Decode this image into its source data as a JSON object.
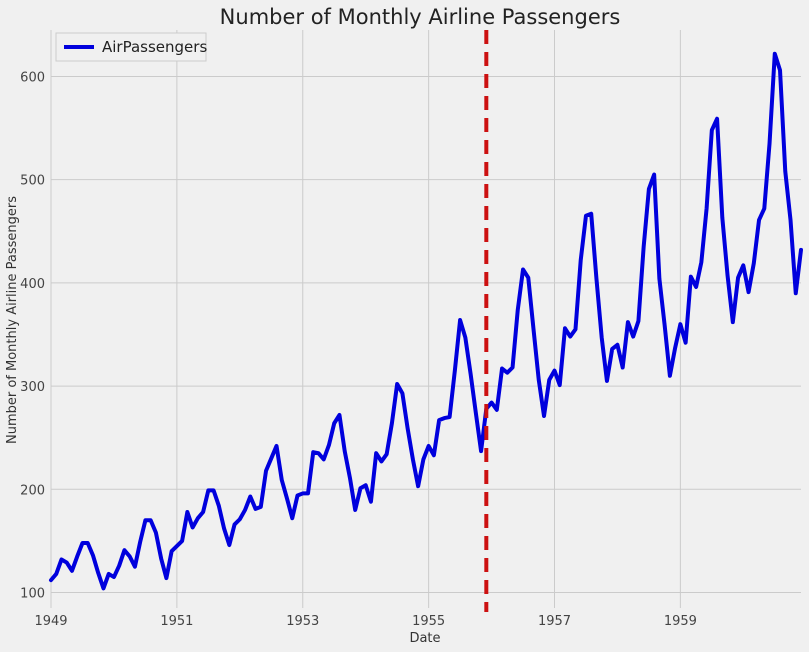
{
  "chart_data": {
    "type": "line",
    "title": "Number of Monthly Airline Passengers",
    "xlabel": "Date",
    "ylabel": "Number of Monthly Airline Passengers",
    "x_start": "1949-01",
    "x_end": "1960-12",
    "x_ticks": [
      "1949",
      "1951",
      "1953",
      "1955",
      "1957",
      "1959"
    ],
    "y_ticks": [
      100,
      200,
      300,
      400,
      500,
      600
    ],
    "ylim": [
      85,
      645
    ],
    "grid": true,
    "legend_position": "top-left",
    "series": [
      {
        "name": "AirPassengers",
        "color": "#0000dd",
        "values": [
          112,
          118,
          132,
          129,
          121,
          135,
          148,
          148,
          136,
          119,
          104,
          118,
          115,
          126,
          141,
          135,
          125,
          149,
          170,
          170,
          158,
          133,
          114,
          140,
          145,
          150,
          178,
          163,
          172,
          178,
          199,
          199,
          184,
          162,
          146,
          166,
          171,
          180,
          193,
          181,
          183,
          218,
          230,
          242,
          209,
          191,
          172,
          194,
          196,
          196,
          236,
          235,
          229,
          243,
          264,
          272,
          237,
          211,
          180,
          201,
          204,
          188,
          235,
          227,
          234,
          264,
          302,
          293,
          259,
          229,
          203,
          229,
          242,
          233,
          267,
          269,
          270,
          315,
          364,
          347,
          312,
          274,
          237,
          278,
          284,
          277,
          317,
          313,
          318,
          374,
          413,
          405,
          355,
          306,
          271,
          306,
          315,
          301,
          356,
          348,
          355,
          422,
          465,
          467,
          404,
          347,
          305,
          336,
          340,
          318,
          362,
          348,
          363,
          435,
          491,
          505,
          404,
          359,
          310,
          337,
          360,
          342,
          406,
          396,
          420,
          472,
          548,
          559,
          463,
          407,
          362,
          405,
          417,
          391,
          419,
          461,
          472,
          535,
          622,
          606,
          508,
          461,
          390,
          432
        ]
      }
    ],
    "vertical_line": {
      "x": "1955-12",
      "color": "#cc1111",
      "style": "dashed"
    }
  }
}
